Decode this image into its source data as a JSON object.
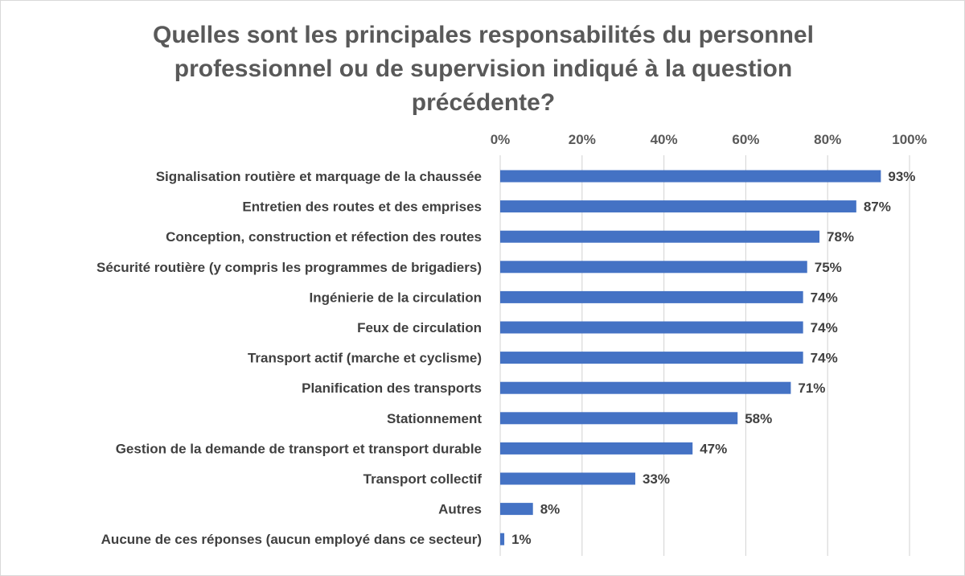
{
  "chart_data": {
    "type": "bar",
    "orientation": "horizontal",
    "title": "Quelles sont les principales responsabilités du personnel professionnel ou de supervision indiqué à la question précédente?",
    "categories": [
      "Signalisation routière et marquage de la chaussée",
      "Entretien des routes et des emprises",
      "Conception, construction et réfection des routes",
      "Sécurité routière (y compris les programmes de brigadiers)",
      "Ingénierie de la circulation ",
      "Feux de circulation",
      "Transport actif (marche et cyclisme)",
      "Planification des transports",
      "Stationnement",
      "Gestion de la demande de transport et transport durable",
      "Transport collectif",
      "Autres",
      "Aucune de ces réponses (aucun employé dans ce secteur)"
    ],
    "values": [
      93,
      87,
      78,
      75,
      74,
      74,
      74,
      71,
      58,
      47,
      33,
      8,
      1
    ],
    "data_labels": [
      "93%",
      "87%",
      "78%",
      "75%",
      "74%",
      "74%",
      "74%",
      "71%",
      "58%",
      "47%",
      "33%",
      "8%",
      "1%"
    ],
    "xlim": [
      0,
      100
    ],
    "x_ticks": [
      "0%",
      "20%",
      "40%",
      "60%",
      "80%",
      "100%"
    ],
    "axis_position": "top",
    "grid": true,
    "bar_color": "#4472c4",
    "grid_color": "#d9d9d9"
  }
}
